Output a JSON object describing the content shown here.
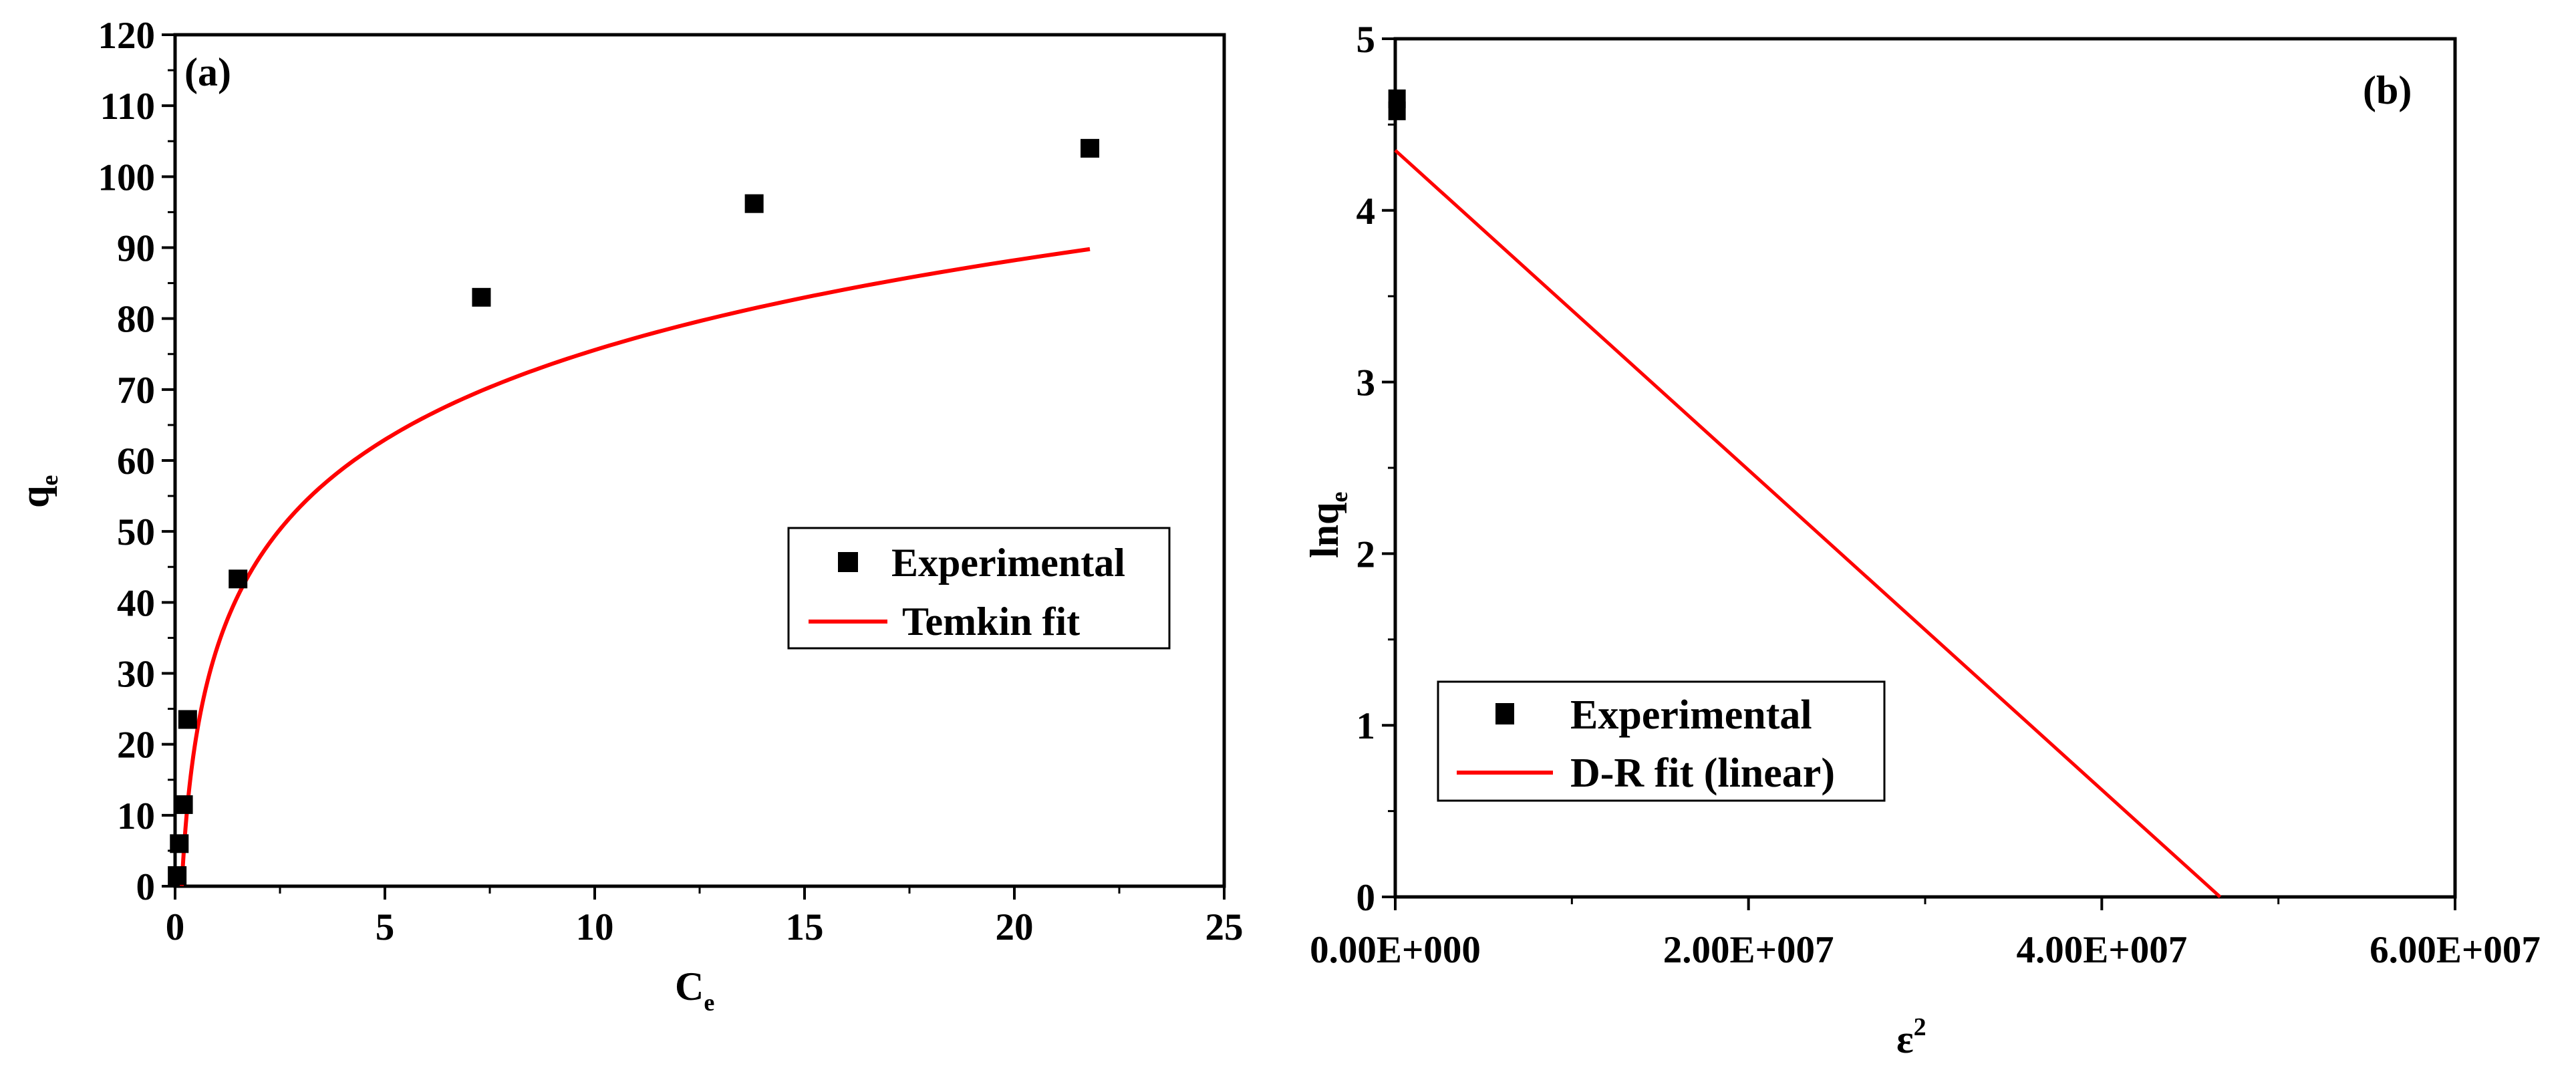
{
  "colors": {
    "fit_line": "#ff0000",
    "marker": "#000000",
    "axes": "#000000",
    "background": "#ffffff"
  },
  "chart_data": [
    {
      "type": "scatter",
      "panel_label": "(a)",
      "xlabel": {
        "main": "C",
        "sub": "e"
      },
      "ylabel": {
        "main": "q",
        "sub": "e"
      },
      "xlim": [
        0,
        25
      ],
      "ylim": [
        0,
        120
      ],
      "xticks": [
        0,
        5,
        10,
        15,
        20,
        25
      ],
      "yticks": [
        0,
        10,
        20,
        30,
        40,
        50,
        60,
        70,
        80,
        90,
        100,
        110,
        120
      ],
      "legend_position": "center-right",
      "series": [
        {
          "name": "Experimental",
          "kind": "points",
          "points": [
            [
              0.05,
              1.5
            ],
            [
              0.1,
              6
            ],
            [
              0.2,
              11.5
            ],
            [
              0.3,
              23.5
            ],
            [
              1.5,
              43.3
            ],
            [
              7.3,
              83
            ],
            [
              13.8,
              96.2
            ],
            [
              21.8,
              104
            ]
          ]
        },
        {
          "name": "Temkin fit",
          "kind": "line",
          "model": "Temkin",
          "params": {
            "A": 6.3,
            "B": 18.24
          },
          "x_range": [
            0.01,
            21.8
          ]
        }
      ]
    },
    {
      "type": "scatter",
      "panel_label": "(b)",
      "xlabel": {
        "main": "ε",
        "sup": "2"
      },
      "ylabel": {
        "main": "lnq",
        "sub": "e"
      },
      "xlim": [
        0,
        60000000
      ],
      "ylim": [
        0,
        5
      ],
      "xticks": [
        0,
        20000000,
        40000000,
        60000000
      ],
      "xtick_labels": [
        "0.00E+000",
        "2.00E+007",
        "4.00E+007",
        "6.00E+007"
      ],
      "yticks": [
        0,
        1,
        2,
        3,
        4,
        5
      ],
      "legend_position": "lower-left",
      "series": [
        {
          "name": "Experimental",
          "kind": "points",
          "points": [
            [
              100000,
              4.65
            ],
            [
              100000,
              4.58
            ]
          ]
        },
        {
          "name": "D-R fit (linear)",
          "kind": "line",
          "model": "linear",
          "params": {
            "intercept": 4.35,
            "slope": -9.32e-08
          },
          "x_range": [
            0,
            46700000
          ]
        }
      ]
    }
  ]
}
